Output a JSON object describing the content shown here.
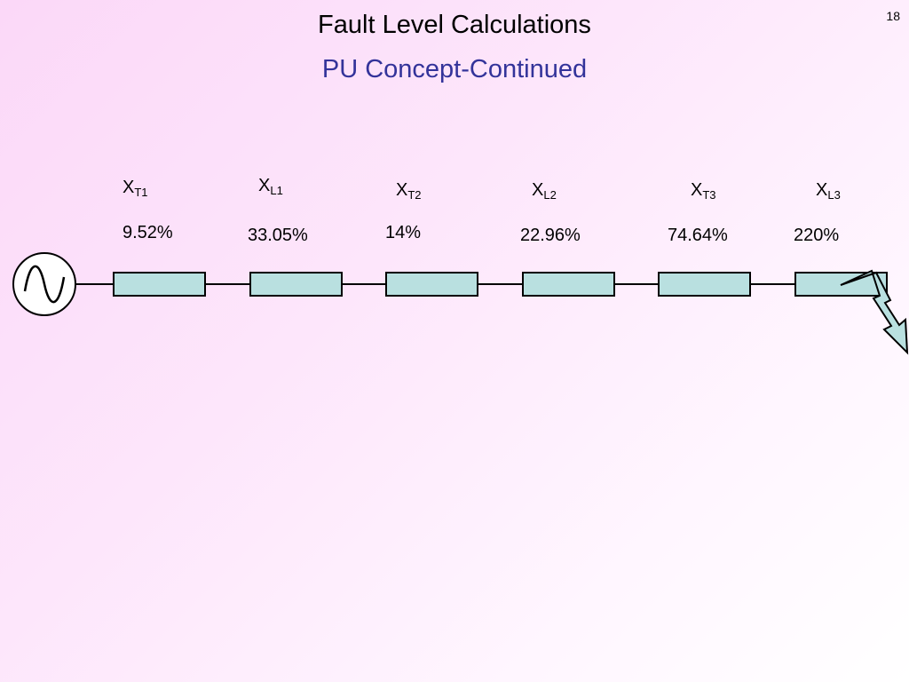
{
  "page_number": "18",
  "title": "Fault Level Calculations",
  "subtitle": "PU Concept-Continued",
  "elements": [
    {
      "symbol": "X",
      "subscript": "T1",
      "value": "9.52%"
    },
    {
      "symbol": "X",
      "subscript": "L1",
      "value": "33.05%"
    },
    {
      "symbol": "X",
      "subscript": "T2",
      "value": "14%"
    },
    {
      "symbol": "X",
      "subscript": "L2",
      "value": "22.96%"
    },
    {
      "symbol": "X",
      "subscript": "T3",
      "value": "74.64%"
    },
    {
      "symbol": "X",
      "subscript": "L3",
      "value": "220%"
    }
  ],
  "colors": {
    "impedance_fill": "#b9e0e0",
    "lightning_fill": "#b9e0e0",
    "subtitle": "#33339a"
  },
  "icons": {
    "source": "ac-source-icon",
    "fault": "lightning-fault-icon"
  }
}
